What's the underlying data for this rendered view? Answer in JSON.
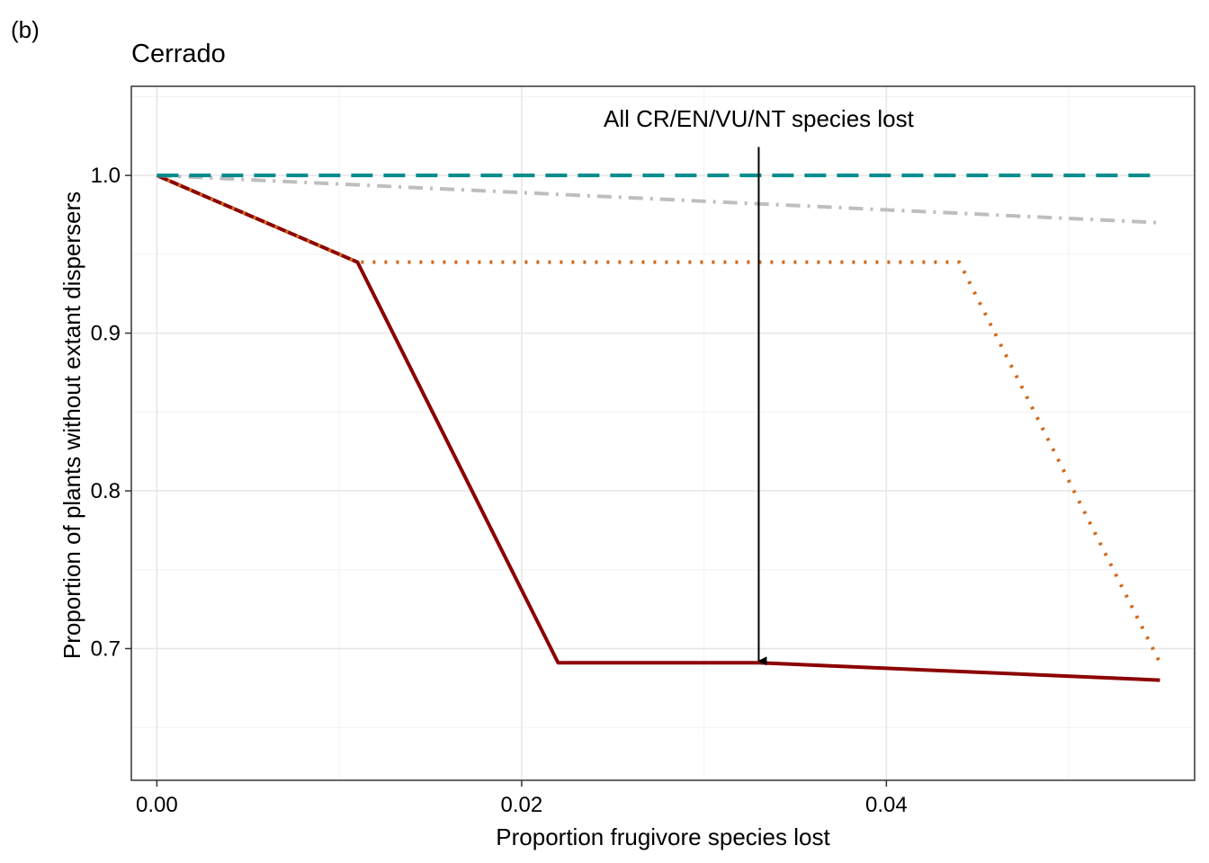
{
  "panel_tag": "(b)",
  "chart_data": {
    "type": "line",
    "title": "Cerrado",
    "xlabel": "Proportion frugivore species lost",
    "ylabel": "Proportion of plants without extant dispersers",
    "xlim": [
      -0.0014,
      0.0569
    ],
    "ylim": [
      0.6165,
      1.0565
    ],
    "x_ticks": [
      0.0,
      0.02,
      0.04
    ],
    "x_tick_labels": [
      "0.00",
      "0.02",
      "0.04"
    ],
    "y_ticks": [
      0.7,
      0.8,
      0.9,
      1.0
    ],
    "y_tick_labels": [
      "0.7",
      "0.8",
      "0.9",
      "1.0"
    ],
    "grid": true,
    "series": [
      {
        "color": "#8B0000",
        "style": "solid",
        "x": [
          0.0,
          0.011,
          0.022,
          0.033,
          0.055
        ],
        "y": [
          1.0,
          0.945,
          0.691,
          0.691,
          0.68
        ]
      },
      {
        "color": "#D2691E",
        "style": "dotted",
        "x": [
          0.0,
          0.011,
          0.044,
          0.055
        ],
        "y": [
          1.0,
          0.945,
          0.945,
          0.691
        ]
      },
      {
        "color": "#BEBEBE",
        "style": "dashdot",
        "x": [
          0.0,
          0.055
        ],
        "y": [
          1.0,
          0.97
        ]
      },
      {
        "color": "#008B8B",
        "style": "dashed",
        "x": [
          0.0,
          0.055
        ],
        "y": [
          1.0,
          1.0
        ]
      }
    ],
    "annotation": {
      "text": "All CR/EN/VU/NT species lost",
      "arrow_x": 0.033,
      "arrow_y_start": 1.018,
      "arrow_y_end": 0.691
    }
  }
}
